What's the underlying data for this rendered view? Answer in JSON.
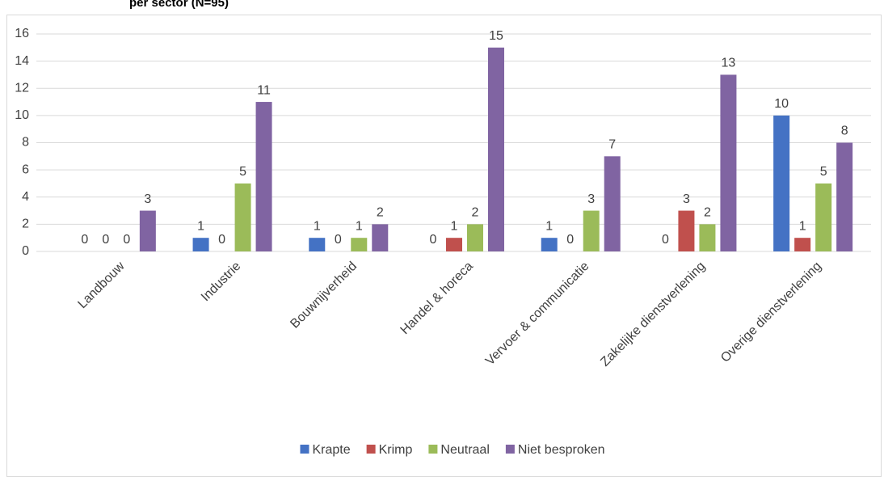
{
  "chart_data": {
    "type": "bar",
    "title": "per sector (N=95)",
    "categories": [
      "Landbouw",
      "Industrie",
      "Bouwnijverheid",
      "Handel & horeca",
      "Vervoer & communicatie",
      "Zakelijke dienstverlening",
      "Overige dienstverlening"
    ],
    "series": [
      {
        "name": "Krapte",
        "color": "#4472c4",
        "values": [
          0,
          1,
          1,
          0,
          1,
          0,
          10
        ]
      },
      {
        "name": "Krimp",
        "color": "#c0504d",
        "values": [
          0,
          0,
          0,
          1,
          0,
          3,
          1
        ]
      },
      {
        "name": "Neutraal",
        "color": "#9bbb59",
        "values": [
          0,
          5,
          1,
          2,
          3,
          2,
          5
        ]
      },
      {
        "name": "Niet besproken",
        "color": "#8064a2",
        "values": [
          3,
          11,
          2,
          15,
          7,
          13,
          8
        ]
      }
    ],
    "ylim": [
      0,
      16
    ],
    "yticks": [
      0,
      2,
      4,
      6,
      8,
      10,
      12,
      14,
      16
    ],
    "grid": true,
    "legend": "bottom"
  }
}
